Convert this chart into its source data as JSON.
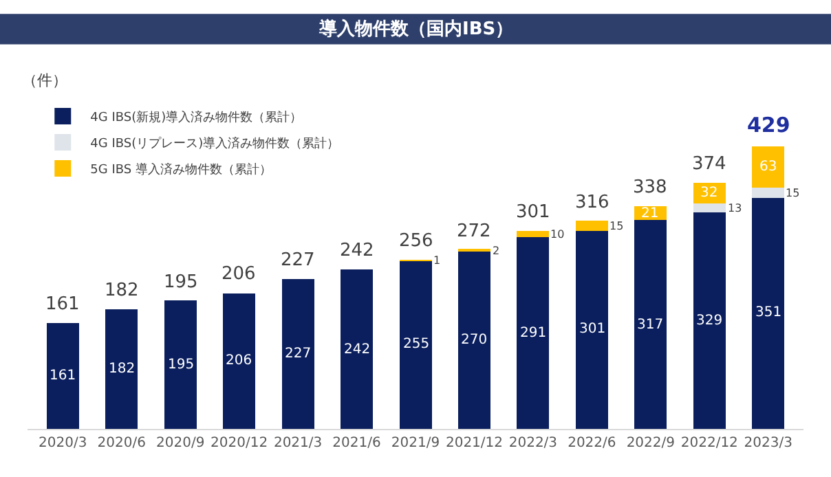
{
  "chart_data": {
    "type": "bar",
    "title": "導入物件数（国内IBS）",
    "ylabel": "（件）",
    "categories": [
      "2020/3",
      "2020/6",
      "2020/9",
      "2020/12",
      "2021/3",
      "2021/6",
      "2021/9",
      "2021/12",
      "2022/3",
      "2022/6",
      "2022/9",
      "2022/12",
      "2023/3"
    ],
    "stacked": true,
    "data_labels": true,
    "legend": "top left",
    "series": [
      {
        "name": "4G IBS(新規)導入済み物件数（累計）",
        "color": "#0b1f5e",
        "values": [
          161,
          182,
          195,
          206,
          227,
          242,
          255,
          270,
          291,
          301,
          317,
          329,
          351
        ]
      },
      {
        "name": "4G IBS(リプレース)導入済み物件数（累計）",
        "color": "#dfe4ea",
        "values": [
          null,
          null,
          null,
          null,
          null,
          null,
          null,
          null,
          null,
          null,
          null,
          13,
          15
        ]
      },
      {
        "name": "5G IBS 導入済み物件数（累計）",
        "color": "#ffc000",
        "values": [
          null,
          null,
          null,
          null,
          null,
          null,
          1,
          2,
          10,
          15,
          21,
          32,
          63
        ]
      }
    ],
    "totals": [
      "161",
      "182",
      "195",
      "206",
      "227",
      "242",
      "256",
      "272",
      "301",
      "316",
      "338",
      "374",
      "429"
    ]
  }
}
